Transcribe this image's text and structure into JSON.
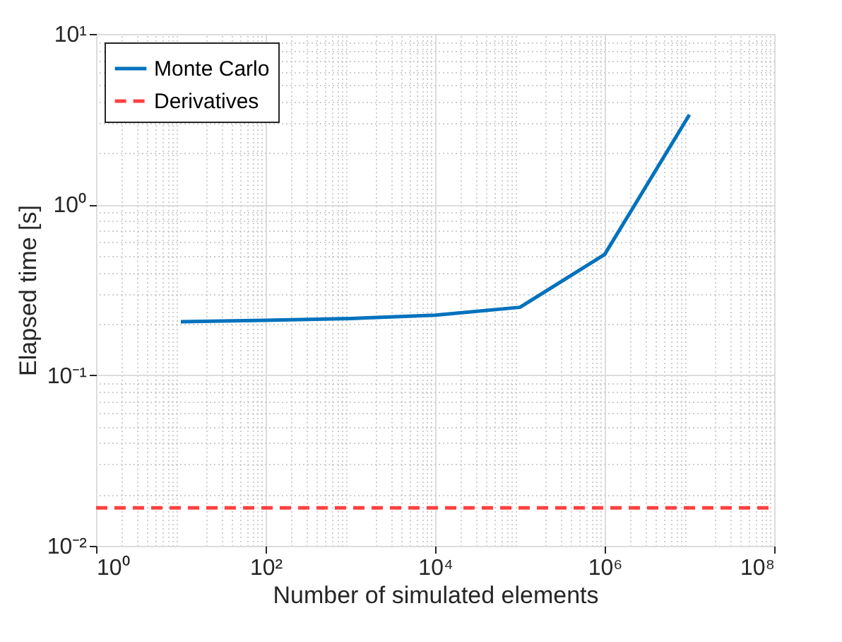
{
  "chart_data": {
    "type": "line",
    "xlabel": "Number of simulated elements",
    "ylabel": "Elapsed time [s]",
    "log": "xy",
    "grid": true,
    "legend": "top left",
    "marker": "none",
    "xlim": [
      1,
      100000000
    ],
    "ylim": [
      0.01,
      10
    ],
    "xticks": [
      {
        "value": 1,
        "label": "10⁰"
      },
      {
        "value": 100,
        "label": "10²"
      },
      {
        "value": 10000,
        "label": "10⁴"
      },
      {
        "value": 1000000,
        "label": "10⁶"
      },
      {
        "value": 100000000,
        "label": "10⁸"
      }
    ],
    "yticks": [
      {
        "value": 0.01,
        "label": "10⁻²"
      },
      {
        "value": 0.1,
        "label": "10⁻¹"
      },
      {
        "value": 1,
        "label": "10⁰"
      },
      {
        "value": 10,
        "label": "10¹"
      }
    ],
    "series": [
      {
        "name": "Monte Carlo",
        "color": "#0072bd",
        "line_style": "solid",
        "x": [
          10,
          100,
          1000,
          10000,
          100000,
          1000000,
          10000000
        ],
        "values": [
          0.206,
          0.21,
          0.215,
          0.225,
          0.25,
          0.51,
          3.36
        ]
      },
      {
        "name": "Derivatives",
        "color": "#ff4040",
        "line_style": "dashed",
        "x": [
          1,
          100000000
        ],
        "values": [
          0.0167,
          0.0167
        ]
      }
    ]
  }
}
